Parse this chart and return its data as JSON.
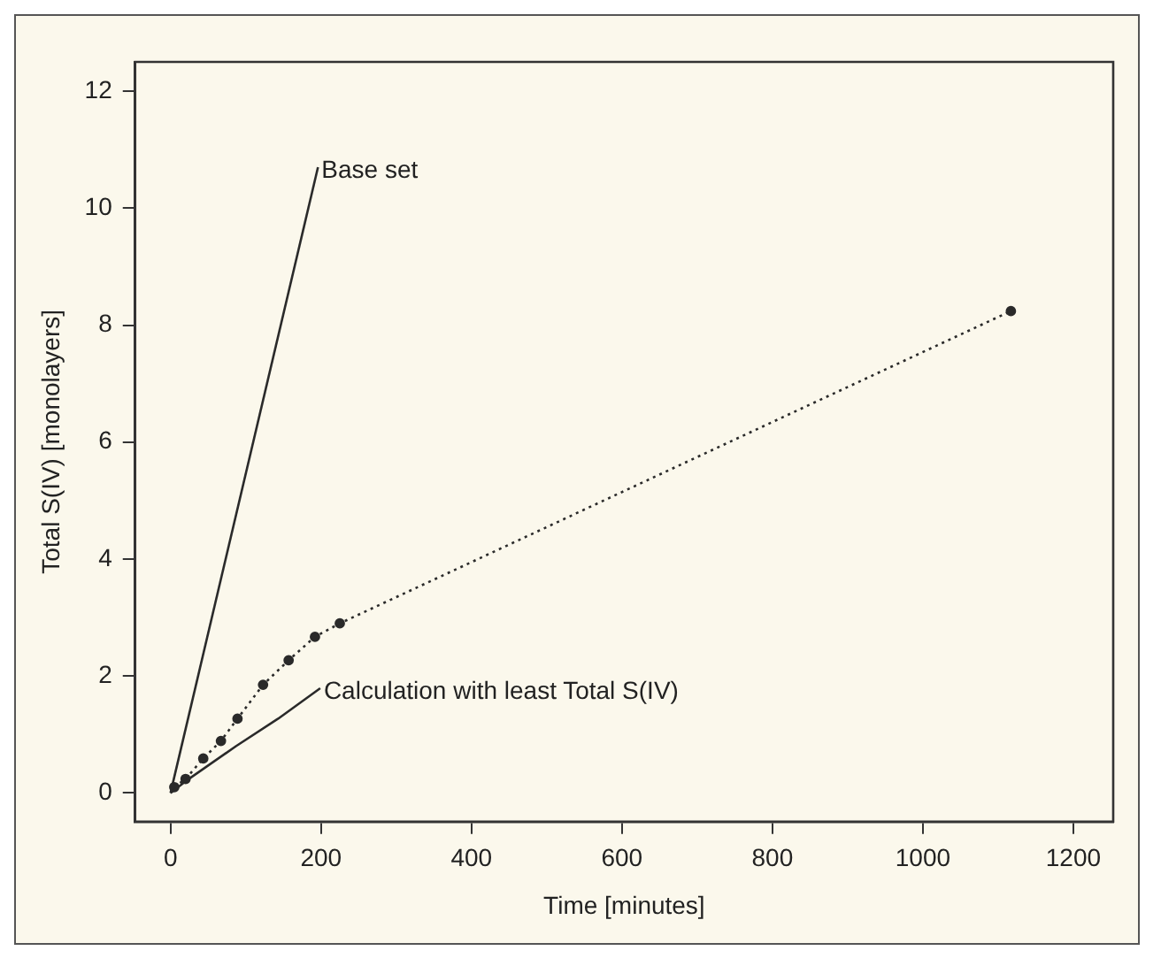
{
  "chart_data": {
    "type": "line",
    "xlabel": "Time [minutes]",
    "ylabel": "Total S(IV) [monolayers]",
    "xlim": [
      -47,
      1253
    ],
    "ylim": [
      -0.49,
      12.5
    ],
    "xticks": [
      0,
      200,
      400,
      600,
      800,
      1000,
      1200
    ],
    "yticks": [
      0,
      2,
      4,
      6,
      8,
      10,
      12
    ],
    "grid": false,
    "legend": false,
    "series": [
      {
        "name": "Base set",
        "color": "#2a2a2a",
        "line_style": "solid",
        "marker": "none",
        "x": [
          0,
          196
        ],
        "values": [
          0,
          10.7
        ]
      },
      {
        "name": "Calculation with least Total S(IV)",
        "color": "#2a2a2a",
        "line_style": "solid",
        "marker": "none",
        "x": [
          0,
          20,
          87,
          143,
          199
        ],
        "values": [
          0,
          0.2,
          0.8,
          1.27,
          1.79
        ]
      },
      {
        "color": "#2a2a2a",
        "line_style": "dotted",
        "marker": "circle",
        "x": [
          5,
          20,
          43.5,
          67,
          89,
          123,
          157,
          192,
          225,
          1117
        ],
        "values": [
          0.1,
          0.24,
          0.59,
          0.89,
          1.27,
          1.85,
          2.27,
          2.67,
          2.9,
          8.24
        ]
      }
    ]
  }
}
